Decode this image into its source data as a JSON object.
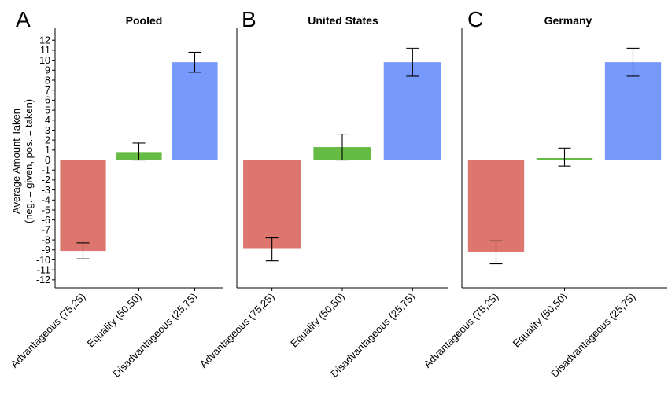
{
  "chart_data": {
    "type": "bar",
    "ylabel": [
      "Average Amount Taken",
      "(neg. = given, pos. = taken)"
    ],
    "ylim": [
      -12.8,
      13.2
    ],
    "yticks": [
      -12,
      -11,
      -10,
      -9,
      -8,
      -7,
      -6,
      -5,
      -4,
      -3,
      -2,
      -1,
      0,
      1,
      2,
      3,
      4,
      5,
      6,
      7,
      8,
      9,
      10,
      11,
      12
    ],
    "categories": [
      "Advantageous (75,25)",
      "Equality (50,50)",
      "Disadvantageous (25,75)"
    ],
    "colors": [
      "#dd766f",
      "#66bb44",
      "#7799fb"
    ],
    "grid": false,
    "panels": [
      {
        "letter": "A",
        "title": "Pooled",
        "values": [
          -9.1,
          0.8,
          9.8
        ],
        "err_low": [
          -9.9,
          0.0,
          8.8
        ],
        "err_high": [
          -8.3,
          1.7,
          10.8
        ]
      },
      {
        "letter": "B",
        "title": "United States",
        "values": [
          -8.9,
          1.3,
          9.8
        ],
        "err_low": [
          -10.1,
          0.0,
          8.4
        ],
        "err_high": [
          -7.8,
          2.6,
          11.2
        ]
      },
      {
        "letter": "C",
        "title": "Germany",
        "values": [
          -9.2,
          0.2,
          9.8
        ],
        "err_low": [
          -10.4,
          -0.6,
          8.4
        ],
        "err_high": [
          -8.1,
          1.2,
          11.2
        ]
      }
    ]
  }
}
